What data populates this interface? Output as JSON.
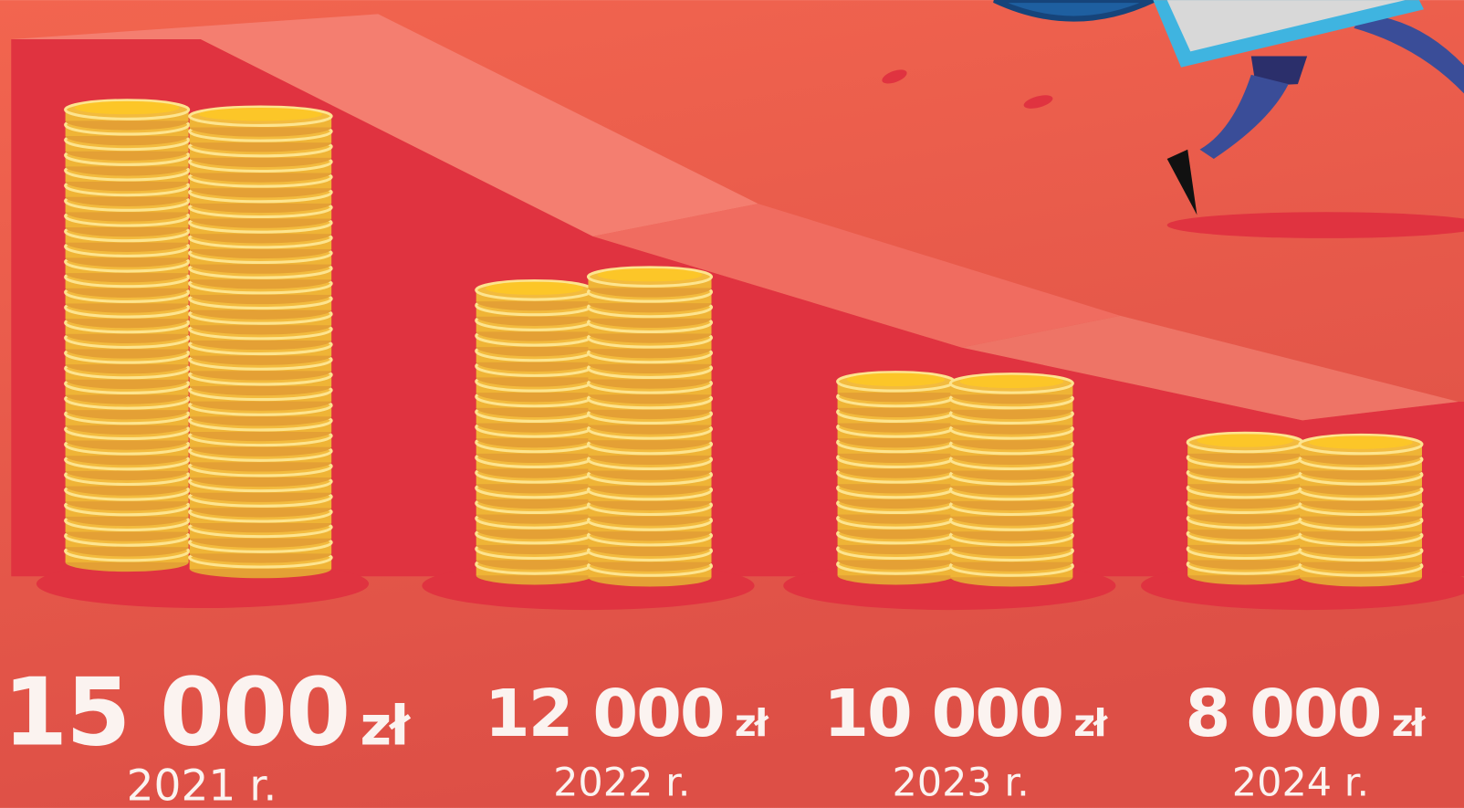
{
  "items": [
    {
      "amount": "15 000",
      "unit": "zł",
      "year": "2021 r."
    },
    {
      "amount": "12 000",
      "unit": "zł",
      "year": "2022 r."
    },
    {
      "amount": "10 000",
      "unit": "zł",
      "year": "2023 r."
    },
    {
      "amount": "8 000",
      "unit": "zł",
      "year": "2024 r."
    }
  ]
}
